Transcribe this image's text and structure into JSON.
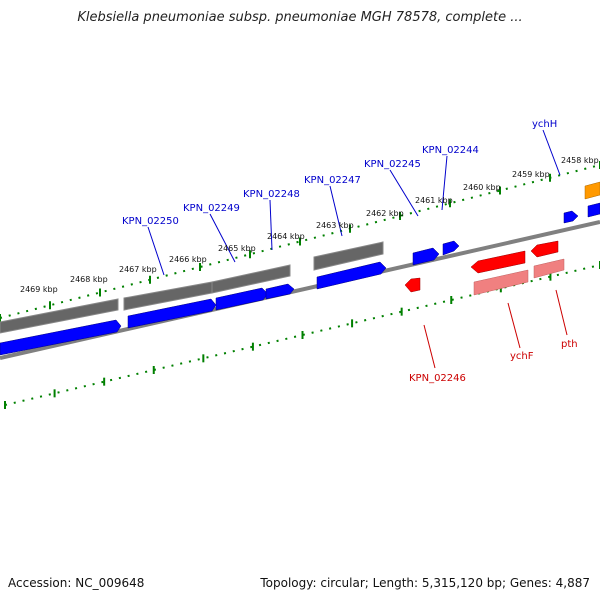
{
  "title": "Klebsiella pneumoniae subsp. pneumoniae MGH 78578, complete ...",
  "footer": {
    "accession": "Accession: NC_009648",
    "summary": "Topology: circular; Length: 5,315,120 bp; Genes: 4,887"
  },
  "colors": {
    "forward_gene": "#0000ff",
    "forward_cds": "#606060",
    "reverse_gene": "#ff0000",
    "reverse_cds": "#f08080",
    "other_gene": "#ff9900",
    "backbone": "#808080",
    "ticks": "#008000",
    "forward_label": "#0000cc",
    "reverse_label": "#cc0000"
  },
  "ruler": {
    "unit": "kbp",
    "ticks": [
      "2469 kbp",
      "2468 kbp",
      "2467 kbp",
      "2466 kbp",
      "2465 kbp",
      "2464 kbp",
      "2463 kbp",
      "2462 kbp",
      "2461 kbp",
      "2460 kbp",
      "2459 kbp",
      "2458 kbp"
    ]
  },
  "gene_labels": {
    "forward": [
      "KPN_02250",
      "KPN_02249",
      "KPN_02248",
      "KPN_02247",
      "KPN_02245",
      "KPN_02244",
      "ychH"
    ],
    "reverse": [
      "KPN_02246",
      "ychF",
      "pth"
    ]
  }
}
